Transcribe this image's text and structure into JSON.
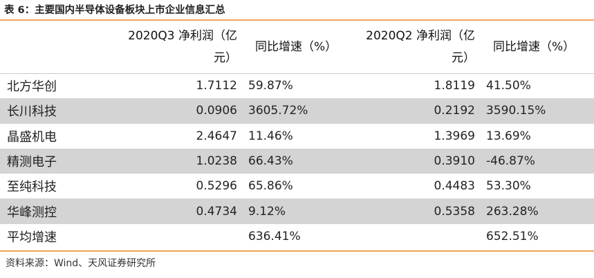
{
  "title": "表 6：主要国内半导体设备板块上市企业信息汇总",
  "table": {
    "headers": [
      "",
      "2020Q3 净利润（亿元）",
      "同比增速（%）",
      "2020Q2 净利润（亿元）",
      "同比增速（%）"
    ],
    "rows": [
      {
        "name": "北方华创",
        "q3_profit": "1.7112",
        "q3_growth": "59.87%",
        "q2_profit": "1.8119",
        "q2_growth": "41.50%"
      },
      {
        "name": "长川科技",
        "q3_profit": "0.0906",
        "q3_growth": "3605.72%",
        "q2_profit": "0.2192",
        "q2_growth": "3590.15%"
      },
      {
        "name": "晶盛机电",
        "q3_profit": "2.4647",
        "q3_growth": "11.46%",
        "q2_profit": "1.3969",
        "q2_growth": "13.69%"
      },
      {
        "name": "精测电子",
        "q3_profit": "1.0238",
        "q3_growth": "66.43%",
        "q2_profit": "0.3910",
        "q2_growth": "-46.87%"
      },
      {
        "name": "至纯科技",
        "q3_profit": "0.5296",
        "q3_growth": "65.86%",
        "q2_profit": "0.4483",
        "q2_growth": "53.30%"
      },
      {
        "name": "华峰测控",
        "q3_profit": "0.4734",
        "q3_growth": "9.12%",
        "q2_profit": "0.5358",
        "q2_growth": "263.28%"
      },
      {
        "name": "平均增速",
        "q3_profit": "",
        "q3_growth": "636.41%",
        "q2_profit": "",
        "q2_growth": "652.51%"
      }
    ]
  },
  "source": "资料来源：Wind、天风证券研究所",
  "colors": {
    "accent_rule": "#f0a35a",
    "row_shade": "#d4d4d4"
  }
}
